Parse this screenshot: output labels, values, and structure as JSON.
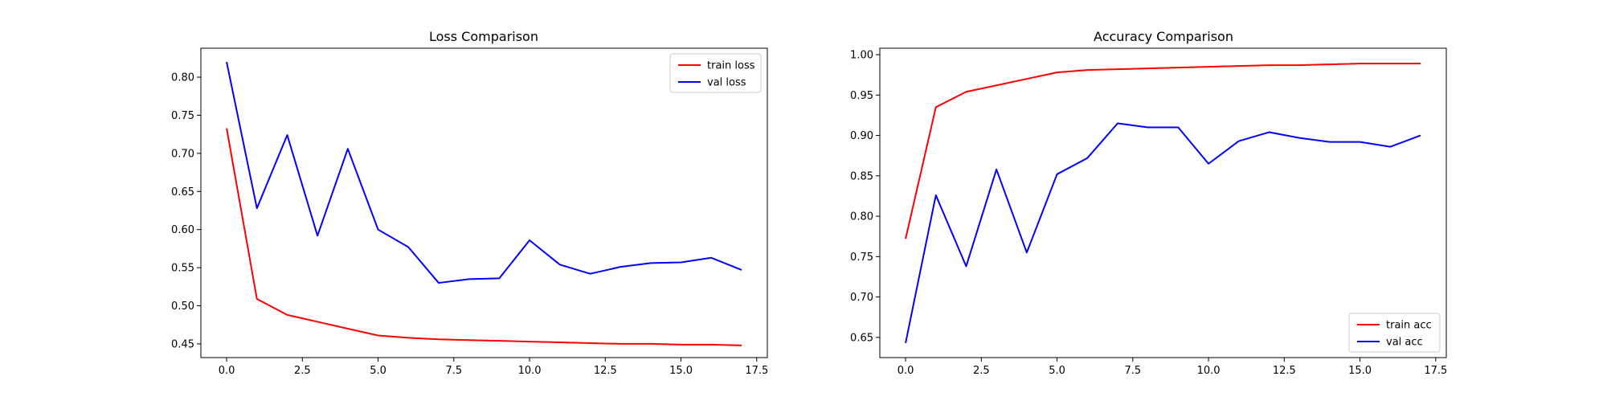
{
  "chart_data": [
    {
      "type": "line",
      "title": "Loss Comparison",
      "xlabel": "",
      "ylabel": "",
      "x": [
        0,
        1,
        2,
        3,
        4,
        5,
        6,
        7,
        8,
        9,
        10,
        11,
        12,
        13,
        14,
        15,
        16,
        17
      ],
      "xlim": [
        -0.85,
        17.85
      ],
      "ylim": [
        0.432,
        0.838
      ],
      "xticks": [
        0.0,
        2.5,
        5.0,
        7.5,
        10.0,
        12.5,
        15.0,
        17.5
      ],
      "xtick_labels": [
        "0.0",
        "2.5",
        "5.0",
        "7.5",
        "10.0",
        "12.5",
        "15.0",
        "17.5"
      ],
      "yticks": [
        0.45,
        0.5,
        0.55,
        0.6,
        0.65,
        0.7,
        0.75,
        0.8
      ],
      "ytick_labels": [
        "0.45",
        "0.50",
        "0.55",
        "0.60",
        "0.65",
        "0.70",
        "0.75",
        "0.80"
      ],
      "grid": false,
      "legend_position": "upper-right",
      "series": [
        {
          "name": "train loss",
          "color": "#ff0000",
          "values": [
            0.733,
            0.509,
            0.488,
            0.479,
            0.47,
            0.461,
            0.458,
            0.456,
            0.455,
            0.454,
            0.453,
            0.452,
            0.451,
            0.45,
            0.45,
            0.449,
            0.449,
            0.448
          ]
        },
        {
          "name": "val loss",
          "color": "#0000ff",
          "values": [
            0.82,
            0.628,
            0.724,
            0.592,
            0.706,
            0.6,
            0.577,
            0.53,
            0.535,
            0.536,
            0.586,
            0.554,
            0.542,
            0.551,
            0.556,
            0.557,
            0.563,
            0.547
          ]
        }
      ]
    },
    {
      "type": "line",
      "title": "Accuracy Comparison",
      "xlabel": "",
      "ylabel": "",
      "x": [
        0,
        1,
        2,
        3,
        4,
        5,
        6,
        7,
        8,
        9,
        10,
        11,
        12,
        13,
        14,
        15,
        16,
        17
      ],
      "xlim": [
        -0.85,
        17.85
      ],
      "ylim": [
        0.625,
        1.008
      ],
      "xticks": [
        0.0,
        2.5,
        5.0,
        7.5,
        10.0,
        12.5,
        15.0,
        17.5
      ],
      "xtick_labels": [
        "0.0",
        "2.5",
        "5.0",
        "7.5",
        "10.0",
        "12.5",
        "15.0",
        "17.5"
      ],
      "yticks": [
        0.65,
        0.7,
        0.75,
        0.8,
        0.85,
        0.9,
        0.95,
        1.0
      ],
      "ytick_labels": [
        "0.65",
        "0.70",
        "0.75",
        "0.80",
        "0.85",
        "0.90",
        "0.95",
        "1.00"
      ],
      "grid": false,
      "legend_position": "lower-right",
      "series": [
        {
          "name": "train acc",
          "color": "#ff0000",
          "values": [
            0.772,
            0.935,
            0.954,
            0.962,
            0.97,
            0.978,
            0.981,
            0.982,
            0.983,
            0.984,
            0.985,
            0.986,
            0.987,
            0.987,
            0.988,
            0.989,
            0.989,
            0.989
          ]
        },
        {
          "name": "val acc",
          "color": "#0000ff",
          "values": [
            0.643,
            0.826,
            0.738,
            0.858,
            0.755,
            0.852,
            0.872,
            0.915,
            0.91,
            0.91,
            0.865,
            0.893,
            0.904,
            0.897,
            0.892,
            0.892,
            0.886,
            0.9
          ]
        }
      ]
    }
  ]
}
